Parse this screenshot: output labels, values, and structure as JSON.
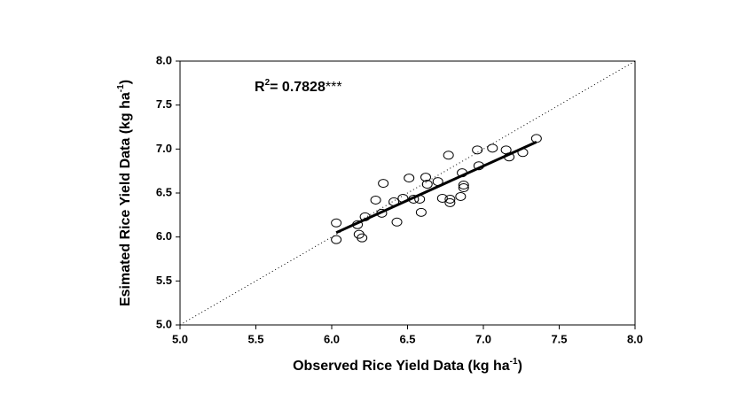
{
  "chart_data": {
    "type": "scatter",
    "x_label": [
      "Observed Rice Yield Data (kg ha",
      "-1",
      ")"
    ],
    "y_label": [
      "Esimated Rice Yield Data (kg ha",
      "-1",
      ")"
    ],
    "annotation": [
      "R",
      "2",
      "= 0.7828",
      "***"
    ],
    "xlim": [
      5,
      8
    ],
    "ylim": [
      5,
      8
    ],
    "xticks": [
      {
        "value": 5,
        "label": "5.0"
      },
      {
        "value": 5.5,
        "label": "5.5"
      },
      {
        "value": 6,
        "label": "6.0"
      },
      {
        "value": 6.5,
        "label": "6.5"
      },
      {
        "value": 7,
        "label": "7.0"
      },
      {
        "value": 7.5,
        "label": "7.5"
      },
      {
        "value": 8,
        "label": "8.0"
      }
    ],
    "yticks": [
      {
        "value": 5,
        "label": "5.0"
      },
      {
        "value": 5.5,
        "label": "5.5"
      },
      {
        "value": 6,
        "label": "6.0"
      },
      {
        "value": 6.5,
        "label": "6.5"
      },
      {
        "value": 7,
        "label": "7.0"
      },
      {
        "value": 7.5,
        "label": "7.5"
      },
      {
        "value": 8,
        "label": "8.0"
      }
    ],
    "x": [
      6.03,
      6.03,
      6.17,
      6.18,
      6.2,
      6.22,
      6.29,
      6.33,
      6.34,
      6.41,
      6.43,
      6.47,
      6.51,
      6.54,
      6.58,
      6.59,
      6.62,
      6.63,
      6.7,
      6.73,
      6.77,
      6.78,
      6.78,
      6.85,
      6.86,
      6.87,
      6.87,
      6.96,
      6.97,
      7.06,
      7.15,
      7.17,
      7.26,
      7.35
    ],
    "values": [
      6.16,
      5.97,
      6.14,
      6.03,
      5.99,
      6.23,
      6.42,
      6.27,
      6.61,
      6.4,
      6.17,
      6.44,
      6.67,
      6.43,
      6.43,
      6.28,
      6.68,
      6.6,
      6.63,
      6.44,
      6.93,
      6.43,
      6.39,
      6.46,
      6.73,
      6.56,
      6.59,
      6.99,
      6.81,
      7.01,
      6.99,
      6.91,
      6.96,
      7.12
    ],
    "marker_color": "#000000",
    "fit_line": {
      "x": [
        6.03,
        7.35
      ],
      "values": [
        6.05,
        7.08
      ],
      "color": "#000000"
    },
    "reference_line": {
      "x": [
        5,
        8
      ],
      "values": [
        5,
        8
      ],
      "color": "#000000"
    }
  }
}
